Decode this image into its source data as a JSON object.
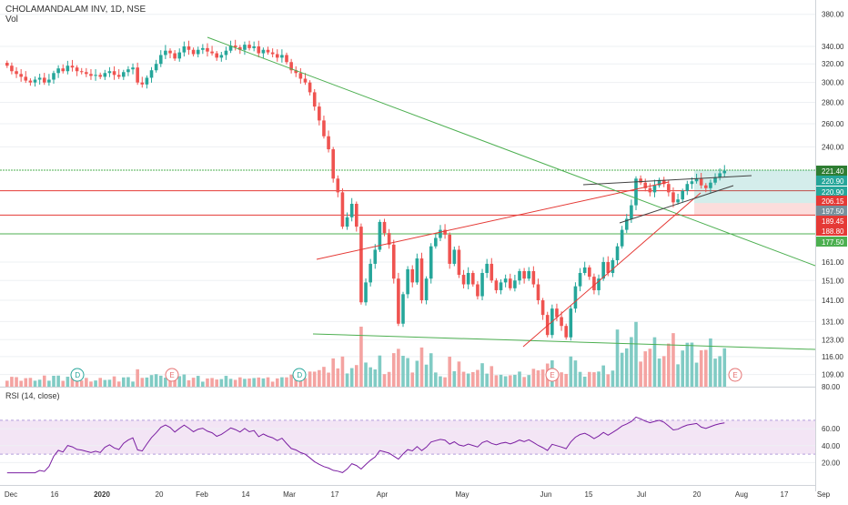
{
  "header": {
    "symbol_line": "CHOLAMANDALAM INV, 1D, NSE",
    "vol_label": "Vol"
  },
  "rsi": {
    "title": "RSI (14, close)",
    "upper_band": 70,
    "lower_band": 30
  },
  "colors": {
    "up": "#26a69a",
    "down": "#ef5350",
    "vol_up": "#80cbc4",
    "vol_down": "#f4a3a1",
    "trend_green": "#4caf50",
    "trend_red": "#e53935",
    "rsi_line": "#7b1fa2",
    "rsi_band": "#f3e5f5",
    "grid": "#eef0f3",
    "axis_text": "#333333"
  },
  "chart_data": {
    "type": "candlestick",
    "price_axis": {
      "scale": "log",
      "ticks": [
        "380.00",
        "340.00",
        "320.00",
        "300.00",
        "280.00",
        "260.00",
        "240.00",
        "161.00",
        "151.00",
        "141.00",
        "131.00",
        "123.00",
        "116.00",
        "109.00",
        "80.00"
      ]
    },
    "rsi_axis": {
      "ticks": [
        "60.00",
        "40.00",
        "20.00"
      ]
    },
    "time_axis": [
      "Dec",
      "16",
      "2020",
      "20",
      "Feb",
      "14",
      "Mar",
      "17",
      "Apr",
      "May",
      "Jun",
      "15",
      "Jul",
      "20",
      "Aug",
      "17",
      "Sep"
    ],
    "price_labels": [
      {
        "text": "221.40",
        "color": "#2e7d32"
      },
      {
        "text": "220.90",
        "color": "#26a69a"
      },
      {
        "text": "220.90",
        "color": "#26a69a"
      },
      {
        "text": "206.15",
        "color": "#e53935"
      },
      {
        "text": "197.50",
        "color": "#78909c"
      },
      {
        "text": "189.45",
        "color": "#e53935"
      },
      {
        "text": "188.80",
        "color": "#e53935"
      },
      {
        "text": "177.50",
        "color": "#4caf50"
      }
    ],
    "event_markers": [
      "D",
      "E",
      "D",
      "E",
      "E"
    ],
    "horizontal_levels": [
      221.4,
      206.15,
      189.45,
      177.5
    ],
    "candles_close": [
      318,
      312,
      309,
      306,
      302,
      300,
      303,
      305,
      300,
      303,
      310,
      315,
      312,
      318,
      316,
      312,
      311,
      309,
      307,
      308,
      306,
      310,
      312,
      308,
      306,
      311,
      314,
      316,
      300,
      298,
      305,
      313,
      320,
      330,
      335,
      332,
      326,
      333,
      340,
      336,
      331,
      336,
      338,
      334,
      332,
      327,
      330,
      335,
      341,
      339,
      336,
      342,
      338,
      340,
      332,
      336,
      333,
      331,
      327,
      330,
      322,
      313,
      310,
      304,
      300,
      290,
      276,
      263,
      249,
      238,
      215,
      205,
      182,
      188,
      197,
      182,
      140,
      150,
      160,
      168,
      185,
      178,
      171,
      152,
      130,
      144,
      157,
      150,
      163,
      141,
      152,
      170,
      175,
      180,
      177,
      160,
      168,
      154,
      149,
      155,
      149,
      143,
      155,
      160,
      151,
      146,
      150,
      152,
      147,
      151,
      156,
      152,
      156,
      149,
      141,
      134,
      125,
      137,
      133,
      129,
      124,
      137,
      148,
      155,
      158,
      153,
      146,
      152,
      161,
      155,
      162,
      170,
      180,
      187,
      196,
      215,
      212,
      208,
      205,
      210,
      214,
      211,
      205,
      198,
      200,
      206,
      211,
      213,
      215,
      210,
      208,
      212,
      216,
      219,
      220.9
    ]
  }
}
